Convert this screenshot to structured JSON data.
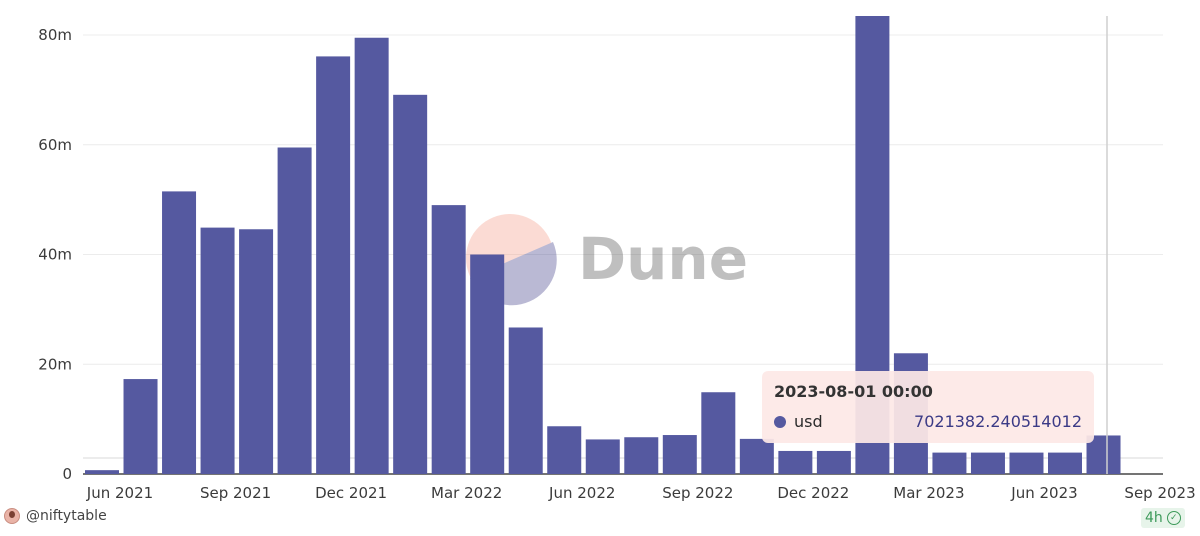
{
  "chart_data": {
    "type": "bar",
    "title": "",
    "xlabel": "",
    "ylabel": "",
    "ylim": [
      0,
      80000000
    ],
    "y_ticks": [
      {
        "value": 0,
        "label": "0"
      },
      {
        "value": 20000000,
        "label": "20m"
      },
      {
        "value": 40000000,
        "label": "40m"
      },
      {
        "value": 60000000,
        "label": "60m"
      },
      {
        "value": 80000000,
        "label": "80m"
      }
    ],
    "x_ticks": [
      "Jun 2021",
      "Sep 2021",
      "Dec 2021",
      "Mar 2022",
      "Jun 2022",
      "Sep 2022",
      "Dec 2022",
      "Mar 2023",
      "Jun 2023",
      "Sep 2023"
    ],
    "categories": [
      "2021-06",
      "2021-07",
      "2021-08",
      "2021-09",
      "2021-10",
      "2021-11",
      "2021-12",
      "2022-01",
      "2022-02",
      "2022-03",
      "2022-04",
      "2022-05",
      "2022-06",
      "2022-07",
      "2022-08",
      "2022-09",
      "2022-10",
      "2022-11",
      "2022-12",
      "2023-01",
      "2023-02",
      "2023-03",
      "2023-04",
      "2023-05",
      "2023-06",
      "2023-07",
      "2023-08"
    ],
    "series": [
      {
        "name": "usd",
        "color": "#5559a0",
        "values": [
          700000,
          17300000,
          51500000,
          44900000,
          44600000,
          59500000,
          76100000,
          79500000,
          69100000,
          49000000,
          40000000,
          26700000,
          8700000,
          6300000,
          6700000,
          7100000,
          14900000,
          6400000,
          4200000,
          4200000,
          84000000,
          22000000,
          3900000,
          3900000,
          3900000,
          3900000,
          7021382.240514012
        ]
      }
    ],
    "grid": true,
    "legend": "none",
    "hover_index": 26
  },
  "tooltip": {
    "title": "2023-08-01 00:00",
    "series_label": "usd",
    "value": "7021382.240514012",
    "dot_color": "#5559a0"
  },
  "watermark": {
    "text": "Dune"
  },
  "footer": {
    "user": "@niftytable",
    "freshness": "4h"
  }
}
